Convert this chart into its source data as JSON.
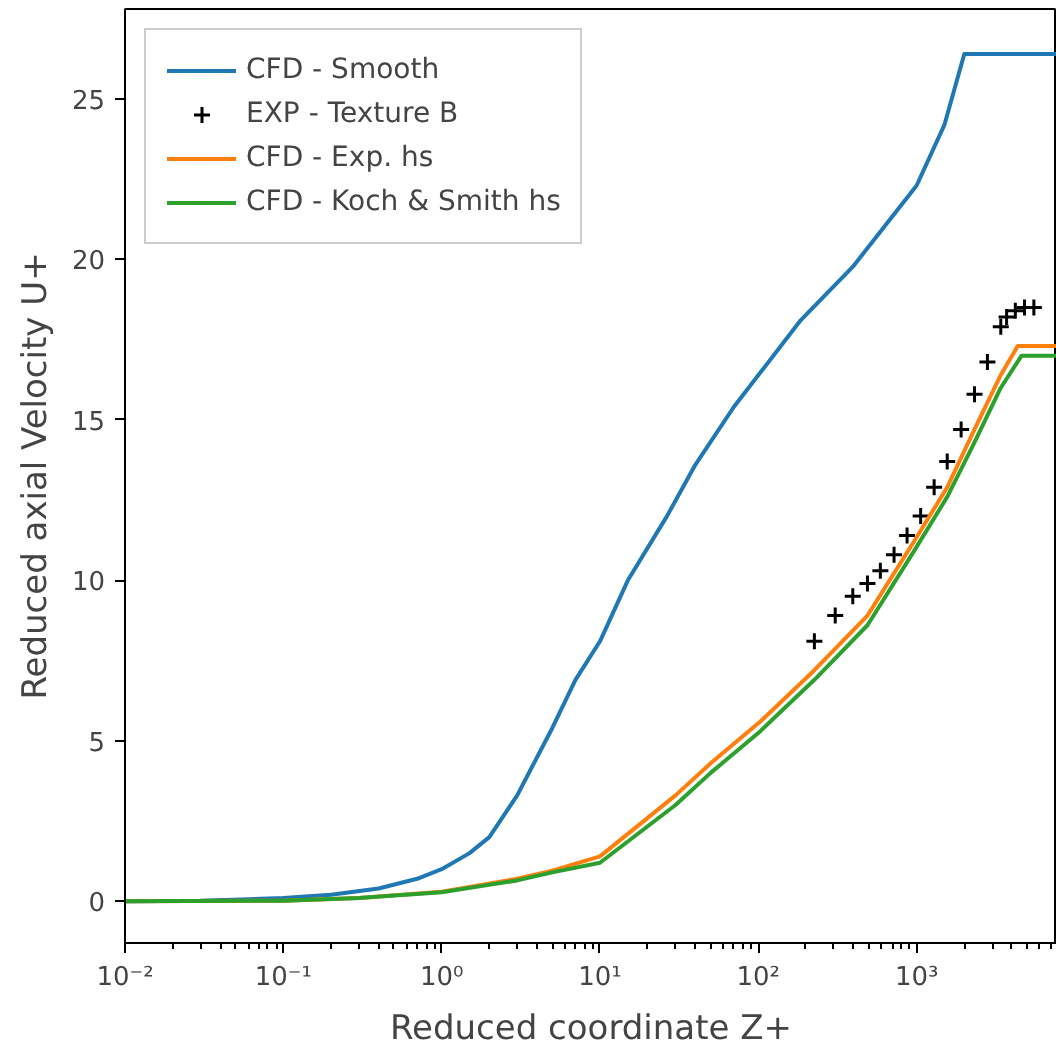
{
  "chart_data": {
    "type": "line",
    "xlabel": "Reduced coordinate Z+",
    "ylabel": "Reduced axial Velocity U+",
    "log": "x",
    "grid": false,
    "legend": "top left",
    "xlim": [
      0.01,
      7700
    ],
    "ylim": [
      -1.3,
      27.8
    ],
    "xticks": [
      {
        "value": 0.01,
        "label": "10⁻²"
      },
      {
        "value": 0.1,
        "label": "10⁻¹"
      },
      {
        "value": 1,
        "label": "10⁰"
      },
      {
        "value": 10,
        "label": "10¹"
      },
      {
        "value": 100,
        "label": "10²"
      },
      {
        "value": 1000,
        "label": "10³"
      }
    ],
    "yticks": [
      0,
      5,
      10,
      15,
      20,
      25
    ],
    "series": [
      {
        "name": "CFD - Smooth",
        "color": "#1f77b4",
        "x": [
          0.01,
          0.03,
          0.1,
          0.2,
          0.4,
          0.7,
          1,
          1.5,
          2,
          3,
          5,
          7,
          10,
          15,
          26.5,
          40,
          70,
          185,
          400,
          1000,
          1500,
          2000,
          7700
        ],
        "values": [
          0.0,
          0.02,
          0.1,
          0.2,
          0.4,
          0.7,
          1.0,
          1.5,
          2.0,
          3.3,
          5.4,
          6.9,
          8.1,
          10.0,
          12.0,
          13.6,
          15.4,
          18.1,
          19.8,
          22.3,
          24.2,
          26.4,
          26.4
        ]
      },
      {
        "name": "EXP - Texture B",
        "color": "#000000",
        "type": "scatter",
        "marker": "cross",
        "x": [
          226,
          306,
          395,
          489,
          590,
          720,
          870,
          1060,
          1290,
          1560,
          1910,
          2320,
          2800,
          3400,
          3700,
          4200,
          4800,
          5500
        ],
        "values": [
          8.1,
          8.9,
          9.5,
          9.9,
          10.3,
          10.8,
          11.4,
          12.0,
          12.9,
          13.7,
          14.7,
          15.8,
          16.8,
          17.9,
          18.2,
          18.4,
          18.5,
          18.5
        ]
      },
      {
        "name": "CFD - Exp. hs",
        "color": "#ff7f0e",
        "x": [
          0.01,
          0.1,
          0.3,
          1,
          3,
          5,
          10,
          30,
          50,
          103,
          226,
          489,
          960,
          1560,
          2320,
          3400,
          4350,
          7700
        ],
        "values": [
          0.0,
          0.02,
          0.1,
          0.3,
          0.7,
          0.95,
          1.4,
          3.3,
          4.3,
          5.6,
          7.2,
          8.9,
          11.2,
          12.9,
          14.7,
          16.4,
          17.3,
          17.3
        ]
      },
      {
        "name": "CFD - Koch & Smith hs",
        "color": "#2ca02c",
        "x": [
          0.01,
          0.1,
          0.3,
          1,
          3,
          5,
          10,
          30,
          50,
          103,
          226,
          489,
          960,
          1560,
          2320,
          3400,
          4600,
          7700
        ],
        "values": [
          0.0,
          0.02,
          0.1,
          0.28,
          0.65,
          0.9,
          1.2,
          3.0,
          4.0,
          5.3,
          6.9,
          8.6,
          10.9,
          12.6,
          14.3,
          16.0,
          17.0,
          17.0
        ]
      }
    ]
  }
}
